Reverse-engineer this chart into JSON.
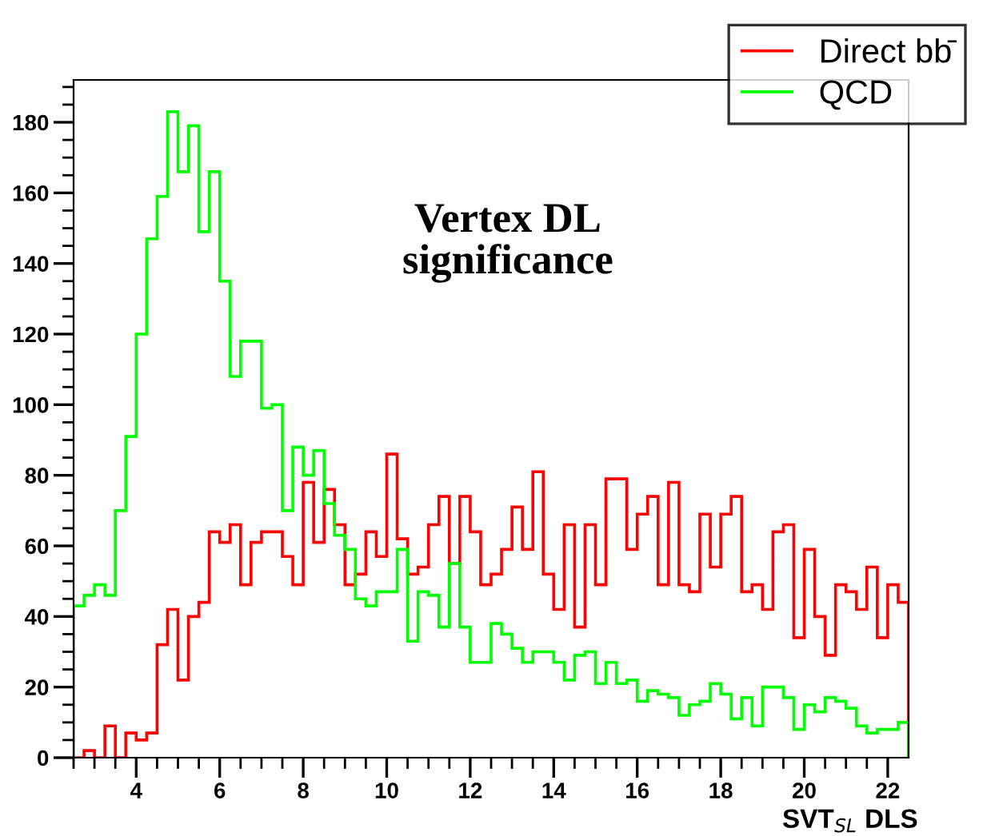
{
  "chart_data": {
    "type": "histogram",
    "xlabel": "SVT$_{SL}$ DLS",
    "annotations": [
      "Vertex DL\nsignificance"
    ],
    "bins": [
      2.5,
      2.75,
      3.0,
      3.25,
      3.5,
      3.75,
      4.0,
      4.25,
      4.5,
      4.75,
      5.0,
      5.25,
      5.5,
      5.75,
      6.0,
      6.25,
      6.5,
      6.75,
      7.0,
      7.25,
      7.5,
      7.75,
      8.0,
      8.25,
      8.5,
      8.75,
      9.0,
      9.25,
      9.5,
      9.75,
      10.0,
      10.25,
      10.5,
      10.75,
      11.0,
      11.25,
      11.5,
      11.75,
      12.0,
      12.25,
      12.5,
      12.75,
      13.0,
      13.25,
      13.5,
      13.75,
      14.0,
      14.25,
      14.5,
      14.75,
      15.0,
      15.25,
      15.5,
      15.75,
      16.0,
      16.25,
      16.5,
      16.75,
      17.0,
      17.25,
      17.5,
      17.75,
      18.0,
      18.25,
      18.5,
      18.75,
      19.0,
      19.25,
      19.5,
      19.75,
      20.0,
      20.25,
      20.5,
      20.75,
      21.0,
      21.25,
      21.5,
      21.75,
      22.0,
      22.25,
      22.5
    ],
    "series": [
      {
        "name": "Direct bb̄",
        "color": "#ff0000",
        "values": [
          0,
          2,
          0,
          9,
          0,
          7,
          5,
          7,
          32,
          42,
          22,
          40,
          44,
          64,
          61,
          66,
          49,
          61,
          64,
          64,
          57,
          49,
          78,
          61,
          76,
          66,
          49,
          52,
          64,
          57,
          86,
          62,
          52,
          54,
          66,
          74,
          55,
          74,
          64,
          49,
          52,
          59,
          71,
          59,
          81,
          52,
          42,
          66,
          37,
          66,
          49,
          79,
          79,
          59,
          69,
          74,
          49,
          78,
          49,
          47,
          69,
          54,
          69,
          74,
          47,
          49,
          42,
          64,
          66,
          34,
          59,
          40,
          29,
          49,
          47,
          42,
          54,
          34,
          49,
          44
        ]
      },
      {
        "name": "QCD",
        "color": "#00ff00",
        "values": [
          43,
          46,
          49,
          46,
          70,
          91,
          120,
          147,
          159,
          183,
          166,
          179,
          149,
          166,
          135,
          108,
          118,
          118,
          99,
          100,
          70,
          88,
          80,
          87,
          72,
          63,
          59,
          45,
          43,
          47,
          47,
          59,
          33,
          47,
          46,
          37,
          55,
          37,
          27,
          27,
          38,
          35,
          31,
          27,
          30,
          30,
          27,
          22,
          29,
          30,
          21,
          27,
          21,
          22,
          16,
          19,
          18,
          17,
          12,
          15,
          16,
          21,
          18,
          11,
          17,
          9,
          20,
          20,
          17,
          8,
          15,
          13,
          17,
          16,
          14,
          9,
          7,
          8,
          8,
          10
        ]
      }
    ],
    "xlim": [
      2.5,
      22.5
    ],
    "ylim": [
      0,
      192
    ],
    "xticks": [
      {
        "value": 2.5,
        "label": null
      },
      {
        "value": 3,
        "label": null
      },
      {
        "value": 3.5,
        "label": null
      },
      4,
      {
        "value": 4.5,
        "label": null
      },
      {
        "value": 5,
        "label": null
      },
      {
        "value": 5.5,
        "label": null
      },
      6,
      {
        "value": 6.5,
        "label": null
      },
      {
        "value": 7,
        "label": null
      },
      {
        "value": 7.5,
        "label": null
      },
      8,
      {
        "value": 8.5,
        "label": null
      },
      {
        "value": 9,
        "label": null
      },
      {
        "value": 9.5,
        "label": null
      },
      10,
      {
        "value": 10.5,
        "label": null
      },
      {
        "value": 11,
        "label": null
      },
      {
        "value": 11.5,
        "label": null
      },
      12,
      {
        "value": 12.5,
        "label": null
      },
      {
        "value": 13,
        "label": null
      },
      {
        "value": 13.5,
        "label": null
      },
      14,
      {
        "value": 14.5,
        "label": null
      },
      {
        "value": 15,
        "label": null
      },
      {
        "value": 15.5,
        "label": null
      },
      16,
      {
        "value": 16.5,
        "label": null
      },
      {
        "value": 17,
        "label": null
      },
      {
        "value": 17.5,
        "label": null
      },
      18,
      {
        "value": 18.5,
        "label": null
      },
      {
        "value": 19,
        "label": null
      },
      {
        "value": 19.5,
        "label": null
      },
      20,
      {
        "value": 20.5,
        "label": null
      },
      {
        "value": 21,
        "label": null
      },
      {
        "value": 21.5,
        "label": null
      },
      22
    ],
    "yticks": [
      0,
      {
        "value": 5,
        "label": null
      },
      {
        "value": 10,
        "label": null
      },
      {
        "value": 15,
        "label": null
      },
      20,
      {
        "value": 25,
        "label": null
      },
      {
        "value": 30,
        "label": null
      },
      {
        "value": 35,
        "label": null
      },
      40,
      {
        "value": 45,
        "label": null
      },
      {
        "value": 50,
        "label": null
      },
      {
        "value": 55,
        "label": null
      },
      60,
      {
        "value": 65,
        "label": null
      },
      {
        "value": 70,
        "label": null
      },
      {
        "value": 75,
        "label": null
      },
      80,
      {
        "value": 85,
        "label": null
      },
      {
        "value": 90,
        "label": null
      },
      {
        "value": 95,
        "label": null
      },
      100,
      {
        "value": 105,
        "label": null
      },
      {
        "value": 110,
        "label": null
      },
      {
        "value": 115,
        "label": null
      },
      120,
      {
        "value": 125,
        "label": null
      },
      {
        "value": 130,
        "label": null
      },
      {
        "value": 135,
        "label": null
      },
      140,
      {
        "value": 145,
        "label": null
      },
      {
        "value": 150,
        "label": null
      },
      {
        "value": 155,
        "label": null
      },
      160,
      {
        "value": 165,
        "label": null
      },
      {
        "value": 170,
        "label": null
      },
      {
        "value": 175,
        "label": null
      },
      180,
      {
        "value": 185,
        "label": null
      },
      {
        "value": 190,
        "label": null
      }
    ],
    "grid": false,
    "legend": "top right"
  }
}
